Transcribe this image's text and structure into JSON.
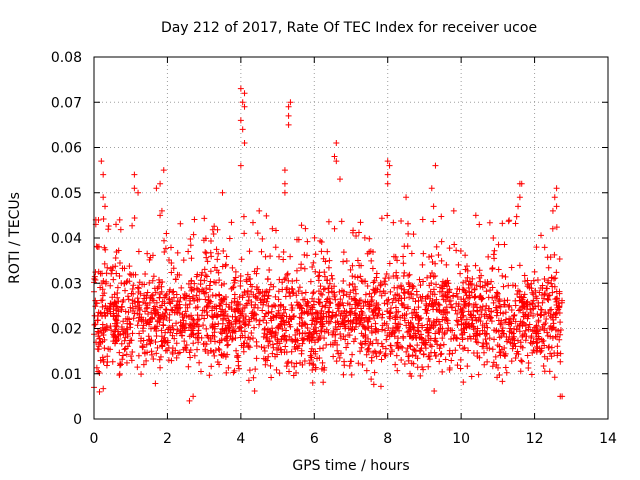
{
  "chart_data": {
    "type": "scatter",
    "title": "Day 212 of 2017, Rate Of TEC Index for receiver ucoe",
    "xlabel": "GPS time / hours",
    "ylabel": "ROTI / TECUs",
    "xlim": [
      0,
      14
    ],
    "ylim": [
      0,
      0.08
    ],
    "xticks": [
      "0",
      "2",
      "4",
      "6",
      "8",
      "10",
      "12",
      "14"
    ],
    "yticks": [
      "0",
      "0.01",
      "0.02",
      "0.03",
      "0.04",
      "0.05",
      "0.06",
      "0.07",
      "0.08"
    ],
    "grid": true,
    "marker": "+",
    "color": "#ff0000",
    "series": [
      {
        "name": "",
        "x_range": [
          0,
          12.75
        ],
        "typical_range": [
          0.005,
          0.04
        ],
        "points": [
          [
            0.05,
            0.044
          ],
          [
            0.05,
            0.043
          ],
          [
            0.1,
            0.038
          ],
          [
            0.2,
            0.057
          ],
          [
            0.25,
            0.049
          ],
          [
            0.25,
            0.054
          ],
          [
            0.3,
            0.047
          ],
          [
            0.6,
            0.043
          ],
          [
            0.7,
            0.044
          ],
          [
            1.1,
            0.054
          ],
          [
            1.1,
            0.051
          ],
          [
            1.2,
            0.05
          ],
          [
            1.7,
            0.051
          ],
          [
            1.8,
            0.052
          ],
          [
            1.9,
            0.055
          ],
          [
            1.85,
            0.046
          ],
          [
            1.8,
            0.045
          ],
          [
            3.5,
            0.05
          ],
          [
            4.0,
            0.073
          ],
          [
            4.05,
            0.07
          ],
          [
            4.1,
            0.072
          ],
          [
            4.1,
            0.069
          ],
          [
            4.0,
            0.066
          ],
          [
            4.05,
            0.064
          ],
          [
            4.1,
            0.061
          ],
          [
            4.0,
            0.056
          ],
          [
            4.5,
            0.046
          ],
          [
            5.2,
            0.055
          ],
          [
            5.2,
            0.052
          ],
          [
            5.3,
            0.069
          ],
          [
            5.35,
            0.07
          ],
          [
            5.3,
            0.067
          ],
          [
            5.3,
            0.065
          ],
          [
            5.2,
            0.05
          ],
          [
            6.6,
            0.061
          ],
          [
            6.55,
            0.058
          ],
          [
            6.6,
            0.057
          ],
          [
            6.7,
            0.053
          ],
          [
            8.0,
            0.057
          ],
          [
            8.05,
            0.056
          ],
          [
            8.0,
            0.054
          ],
          [
            8.0,
            0.052
          ],
          [
            8.5,
            0.049
          ],
          [
            9.3,
            0.056
          ],
          [
            9.2,
            0.051
          ],
          [
            9.25,
            0.047
          ],
          [
            9.8,
            0.046
          ],
          [
            10.4,
            0.045
          ],
          [
            11.6,
            0.052
          ],
          [
            11.65,
            0.052
          ],
          [
            11.6,
            0.049
          ],
          [
            11.55,
            0.047
          ],
          [
            12.6,
            0.051
          ],
          [
            12.55,
            0.049
          ],
          [
            12.6,
            0.047
          ],
          [
            12.5,
            0.046
          ],
          [
            2.6,
            0.004
          ],
          [
            2.7,
            0.005
          ],
          [
            12.7,
            0.005
          ],
          [
            12.75,
            0.005
          ],
          [
            0.0,
            0.007
          ],
          [
            0.15,
            0.006
          ]
        ]
      }
    ]
  }
}
